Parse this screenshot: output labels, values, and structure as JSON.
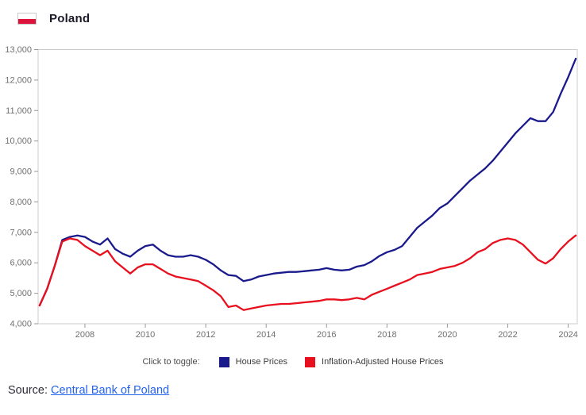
{
  "header": {
    "country": "Poland",
    "flag": {
      "top_color": "#ffffff",
      "bottom_color": "#dc143c"
    }
  },
  "legend": {
    "prompt": "Click to toggle:",
    "items": [
      {
        "label": "House Prices",
        "color": "#1a1a8c"
      },
      {
        "label": "Inflation-Adjusted House Prices",
        "color": "#e8101e"
      }
    ]
  },
  "source": {
    "prefix": "Source:",
    "link_text": "Central Bank of Poland"
  },
  "colors": {
    "axis_border": "#cccccc",
    "tick_mark": "#999999",
    "tick_label": "#707070",
    "link_blue": "#2563eb"
  },
  "chart_data": {
    "type": "line",
    "title": "Poland",
    "xlabel": "",
    "ylabel": "",
    "grid": false,
    "legend_position": "bottom",
    "xlim": [
      2006.45,
      2024.3
    ],
    "ylim": [
      4000,
      13000
    ],
    "xticks": [
      2008,
      2010,
      2012,
      2014,
      2016,
      2018,
      2020,
      2022,
      2024
    ],
    "yticks": [
      4000,
      5000,
      6000,
      7000,
      8000,
      9000,
      10000,
      11000,
      12000,
      13000
    ],
    "x": [
      2006.5,
      2006.75,
      2007.0,
      2007.25,
      2007.5,
      2007.75,
      2008.0,
      2008.25,
      2008.5,
      2008.75,
      2009.0,
      2009.25,
      2009.5,
      2009.75,
      2010.0,
      2010.25,
      2010.5,
      2010.75,
      2011.0,
      2011.25,
      2011.5,
      2011.75,
      2012.0,
      2012.25,
      2012.5,
      2012.75,
      2013.0,
      2013.25,
      2013.5,
      2013.75,
      2014.0,
      2014.25,
      2014.5,
      2014.75,
      2015.0,
      2015.25,
      2015.5,
      2015.75,
      2016.0,
      2016.25,
      2016.5,
      2016.75,
      2017.0,
      2017.25,
      2017.5,
      2017.75,
      2018.0,
      2018.25,
      2018.5,
      2018.75,
      2019.0,
      2019.25,
      2019.5,
      2019.75,
      2020.0,
      2020.25,
      2020.5,
      2020.75,
      2021.0,
      2021.25,
      2021.5,
      2021.75,
      2022.0,
      2022.25,
      2022.5,
      2022.75,
      2023.0,
      2023.25,
      2023.5,
      2023.75,
      2024.0,
      2024.25
    ],
    "series": [
      {
        "name": "House Prices",
        "color": "#1a1a8c",
        "values": [
          4600,
          5150,
          5900,
          6750,
          6850,
          6900,
          6850,
          6700,
          6600,
          6800,
          6450,
          6300,
          6200,
          6400,
          6550,
          6600,
          6400,
          6250,
          6200,
          6200,
          6250,
          6200,
          6100,
          5950,
          5750,
          5600,
          5570,
          5400,
          5450,
          5550,
          5600,
          5650,
          5675,
          5700,
          5700,
          5725,
          5750,
          5775,
          5825,
          5775,
          5750,
          5775,
          5875,
          5925,
          6050,
          6225,
          6350,
          6425,
          6550,
          6850,
          7150,
          7350,
          7550,
          7800,
          7950,
          8200,
          8450,
          8700,
          8900,
          9100,
          9350,
          9650,
          9950,
          10250,
          10500,
          10750,
          10650,
          10650,
          10950,
          11550,
          12100,
          12700
        ]
      },
      {
        "name": "Inflation-Adjusted House Prices",
        "color": "#e8101e",
        "values": [
          4600,
          5150,
          5900,
          6700,
          6800,
          6750,
          6550,
          6400,
          6250,
          6400,
          6050,
          5850,
          5650,
          5850,
          5950,
          5950,
          5800,
          5650,
          5550,
          5500,
          5450,
          5400,
          5250,
          5100,
          4900,
          4550,
          4600,
          4450,
          4500,
          4550,
          4600,
          4625,
          4650,
          4650,
          4675,
          4700,
          4725,
          4750,
          4800,
          4800,
          4775,
          4800,
          4850,
          4800,
          4950,
          5050,
          5150,
          5250,
          5350,
          5450,
          5600,
          5650,
          5700,
          5800,
          5850,
          5900,
          6000,
          6150,
          6350,
          6450,
          6650,
          6750,
          6800,
          6750,
          6600,
          6350,
          6100,
          5975,
          6150,
          6450,
          6700,
          6900
        ]
      }
    ]
  }
}
